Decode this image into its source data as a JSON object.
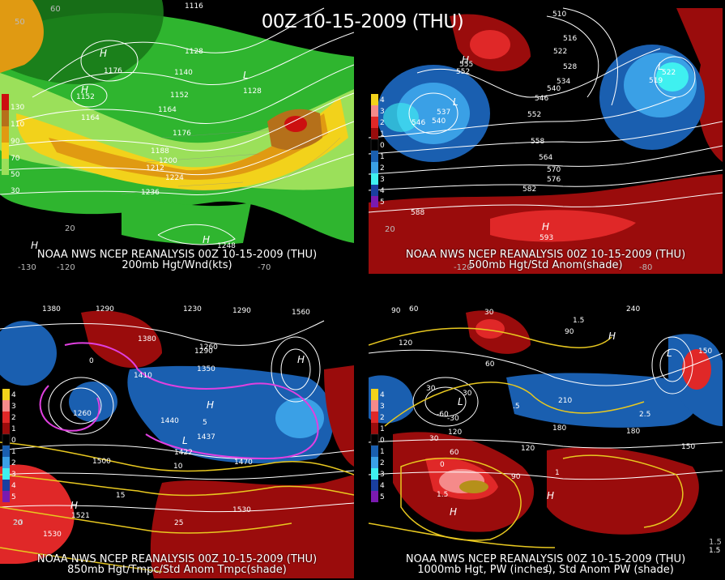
{
  "title": "00Z 10-15-2009 (THU)",
  "colors": {
    "wind_green_light": "#9be05a",
    "wind_green": "#2fb52f",
    "wind_dark_green": "#1a7a1a",
    "wind_yellow": "#f2d21b",
    "wind_orange": "#e09a12",
    "wind_brown": "#b5701a",
    "wind_red": "#cc1010",
    "anom_dark_red": "#9a0c0c",
    "anom_red": "#e02828",
    "anom_pink": "#f58a8a",
    "anom_light_blue": "#3aa0e6",
    "anom_blue": "#1a5fb0",
    "anom_cyan": "#3ff0f0",
    "contour_white": "#ffffff",
    "contour_yellow": "#e8c820",
    "contour_magenta": "#e040e0"
  },
  "panels": [
    {
      "footer1": "NOAA NWS NCEP REANALYSIS 00Z 10-15-2009 (THU)",
      "footer2": "200mb Hgt/Wnd(kts)",
      "scale_labels": [
        "130",
        "110",
        "90",
        "70",
        "50",
        "30"
      ],
      "contour_labels": [
        "1116",
        "1128",
        "1140",
        "1152",
        "1164",
        "1176",
        "1188",
        "1200",
        "1212",
        "1224",
        "1236",
        "1248",
        "1164",
        "1176",
        "1152",
        "1128"
      ],
      "pressure_labels": [
        "H",
        "H",
        "L",
        "H",
        "H"
      ],
      "lon_labels": [
        "-130",
        "-120",
        "-70"
      ],
      "lat_labels": [
        "50",
        "60",
        "20"
      ]
    },
    {
      "footer1": "NOAA NWS NCEP REANALYSIS 00Z 10-15-2009 (THU)",
      "footer2": "500mb Hgt/Std Anom(shade)",
      "scale_labels": [
        "4",
        "3",
        "2",
        "1",
        "0",
        "1",
        "2",
        "3",
        "4",
        "5"
      ],
      "contour_labels": [
        "510",
        "516",
        "522",
        "528",
        "534",
        "540",
        "546",
        "552",
        "558",
        "564",
        "570",
        "576",
        "582",
        "588",
        "593",
        "555",
        "552",
        "537",
        "540",
        "546",
        "519",
        "522"
      ],
      "pressure_labels": [
        "H",
        "L",
        "L",
        "H"
      ],
      "lon_labels": [
        "-120",
        "-80"
      ],
      "lat_labels": [
        "20"
      ]
    },
    {
      "footer1": "NOAA NWS NCEP REANALYSIS 00Z 10-15-2009 (THU)",
      "footer2": "850mb Hgt/Tmpc/Std Anom Tmpc(shade)",
      "scale_labels": [
        "4",
        "3",
        "2",
        "1",
        "0",
        "1",
        "2",
        "3",
        "4",
        "5"
      ],
      "contour_labels": [
        "1380",
        "1290",
        "1230",
        "1290",
        "1560",
        "1380",
        "1260",
        "1290",
        "1410",
        "1350",
        "1440",
        "1437",
        "1422",
        "1260",
        "1500",
        "1470",
        "1530",
        "1530",
        "1521"
      ],
      "temp_labels": [
        "0",
        "5",
        "10",
        "15",
        "20",
        "25"
      ],
      "pressure_labels": [
        "H",
        "H",
        "L",
        "H"
      ],
      "lat_labels": [
        "20"
      ]
    },
    {
      "footer1": "NOAA NWS NCEP REANALYSIS 00Z 10-15-2009 (THU)",
      "footer2": "1000mb Hgt, PW (inches), Std Anom PW (shade)",
      "scale_labels": [
        "4",
        "3",
        "2",
        "1",
        "0",
        "1",
        "2",
        "3",
        "4",
        "5"
      ],
      "contour_labels": [
        "90",
        "60",
        "30",
        "240",
        "120",
        "60",
        "90",
        "150",
        "180",
        "30",
        "30",
        "-60",
        "-30",
        "210",
        "180",
        "120",
        "150",
        "90",
        "60",
        "30",
        "0",
        "120"
      ],
      "pw_labels": [
        "1.5",
        "1",
        "2.5",
        ".5",
        "1.5",
        "1.5"
      ],
      "pressure_labels": [
        "L",
        "H",
        "H",
        "L",
        "H",
        "L"
      ],
      "lat_labels": [
        "1.5"
      ]
    }
  ]
}
